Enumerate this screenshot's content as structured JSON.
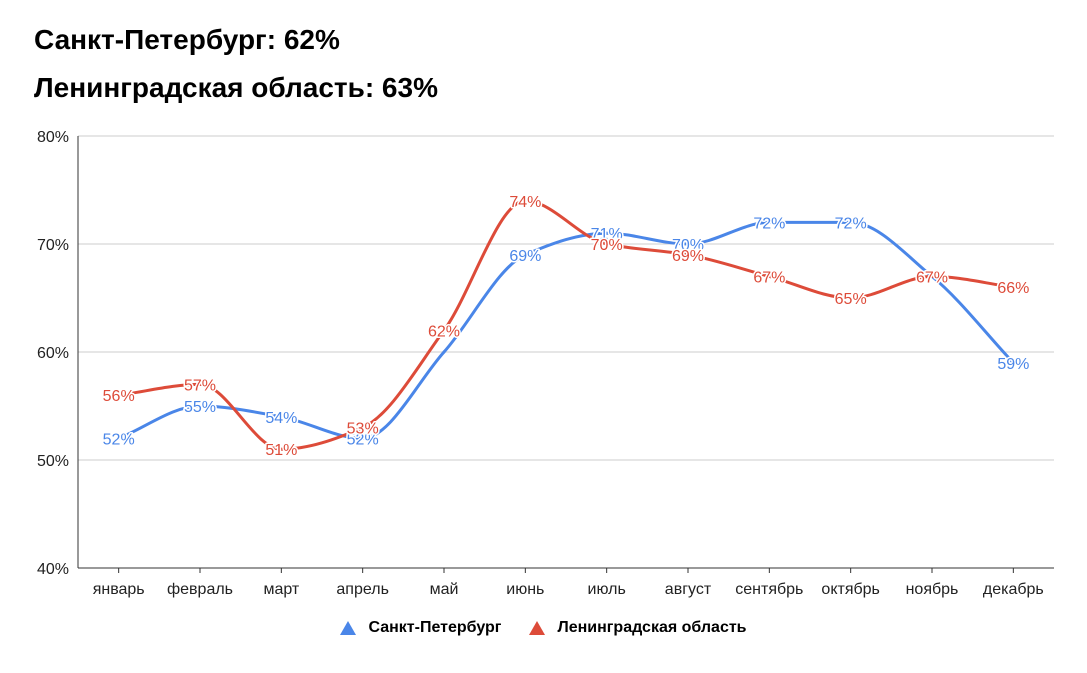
{
  "headline": {
    "spb": "Санкт-Петербург: 62%",
    "lo": "Ленинградская область: 63%"
  },
  "chart_data": {
    "type": "line",
    "categories": [
      "январь",
      "февраль",
      "март",
      "апрель",
      "май",
      "июнь",
      "июль",
      "август",
      "сентябрь",
      "октябрь",
      "ноябрь",
      "декабрь"
    ],
    "series": [
      {
        "name": "Санкт-Петербург",
        "color": "#4a86e8",
        "values": [
          52,
          55,
          54,
          52,
          60,
          69,
          71,
          70,
          72,
          72,
          67,
          59
        ],
        "labels": [
          "52%",
          "55%",
          "54%",
          "52%",
          "",
          "69%",
          "71%",
          "70%",
          "72%",
          "72%",
          "",
          "59%"
        ]
      },
      {
        "name": "Ленинградская область",
        "color": "#dd4b39",
        "values": [
          56,
          57,
          51,
          53,
          62,
          74,
          70,
          69,
          67,
          65,
          67,
          66
        ],
        "labels": [
          "56%",
          "57%",
          "51%",
          "53%",
          "62%",
          "74%",
          "70%",
          "69%",
          "67%",
          "65%",
          "67%",
          "66%"
        ]
      }
    ],
    "y_ticks": [
      "80%",
      "70%",
      "60%",
      "50%",
      "40%"
    ],
    "ylim": [
      40,
      80
    ],
    "grid": true,
    "legend_position": "bottom",
    "smooth": true
  }
}
